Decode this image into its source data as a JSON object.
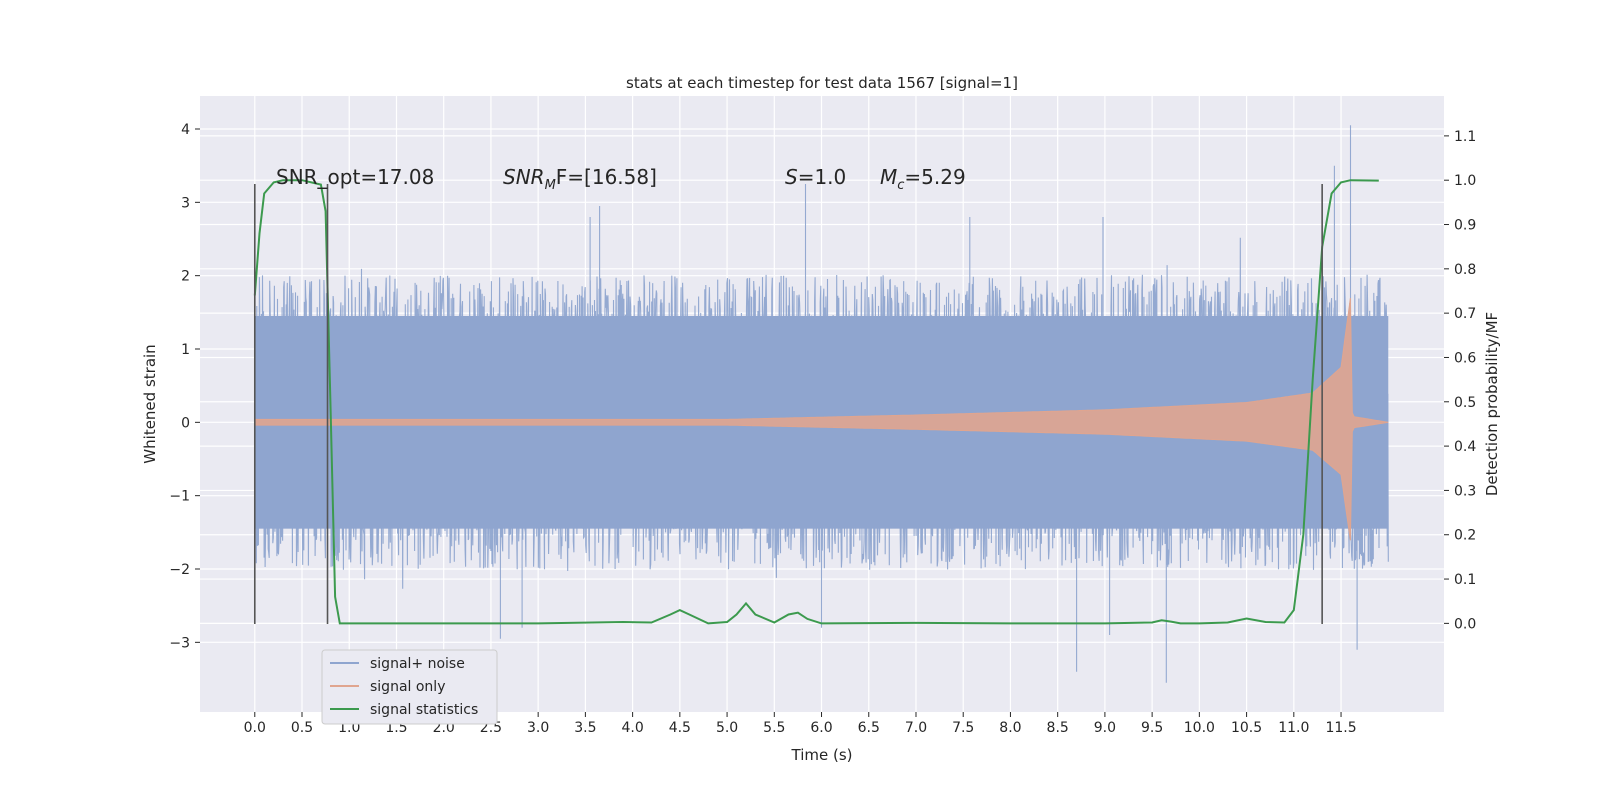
{
  "chart_data": {
    "type": "line",
    "title": "stats at each timestep for test data 1567 [signal=1]",
    "xlabel": "Time (s)",
    "ylabel": "Whitened strain",
    "ylabel_right": "Detection probability/MF",
    "xlim": [
      -0.58,
      12.59
    ],
    "ylim": [
      -3.95,
      4.45
    ],
    "ylim_right": [
      -0.2,
      1.19
    ],
    "x_ticks": [
      0.0,
      0.5,
      1.0,
      1.5,
      2.0,
      2.5,
      3.0,
      3.5,
      4.0,
      4.5,
      5.0,
      5.5,
      6.0,
      6.5,
      7.0,
      7.5,
      8.0,
      8.5,
      9.0,
      9.5,
      10.0,
      10.5,
      11.0,
      11.5
    ],
    "x_tick_labels": [
      "0.0",
      "0.5",
      "1.0",
      "1.5",
      "2.0",
      "2.5",
      "3.0",
      "3.5",
      "4.0",
      "4.5",
      "5.0",
      "5.5",
      "6.0",
      "6.5",
      "7.0",
      "7.5",
      "8.0",
      "8.5",
      "9.0",
      "9.5",
      "10.0",
      "10.5",
      "11.0",
      "11.5"
    ],
    "y_ticks": [
      -3,
      -2,
      -1,
      0,
      1,
      2,
      3,
      4
    ],
    "y_tick_labels": [
      "−3",
      "−2",
      "−1",
      "0",
      "1",
      "2",
      "3",
      "4"
    ],
    "y_ticks_right": [
      0.0,
      0.1,
      0.2,
      0.3,
      0.4,
      0.5,
      0.6,
      0.7,
      0.8,
      0.9,
      1.0,
      1.1
    ],
    "y_tick_labels_right": [
      "0.0",
      "0.1",
      "0.2",
      "0.3",
      "0.4",
      "0.5",
      "0.6",
      "0.7",
      "0.8",
      "0.9",
      "1.0",
      "1.1"
    ],
    "grid": true,
    "legend_position": "lower-left",
    "annotations": {
      "snr_opt": "SNR_opt=17.08",
      "snr_mf_label": "SNR",
      "snr_mf_sub": "M",
      "snr_mf_value": "F=[16.58]",
      "s_label": "S",
      "s_value": "=1.0",
      "mc_label": "M",
      "mc_sub": "c",
      "mc_value": "=5.29"
    },
    "series": [
      {
        "name": "signal+ noise",
        "color": "#8fa5cf",
        "kind": "noise",
        "x_start": 0.0,
        "x_end": 12.0,
        "typical_range": [
          -1.75,
          1.75
        ],
        "peak_samples": [
          {
            "x": 2.6,
            "y": -2.95
          },
          {
            "x": 2.83,
            "y": -2.8
          },
          {
            "x": 3.55,
            "y": 2.8
          },
          {
            "x": 3.65,
            "y": 2.95
          },
          {
            "x": 5.83,
            "y": 3.25
          },
          {
            "x": 6.0,
            "y": -2.8
          },
          {
            "x": 7.57,
            "y": 2.8
          },
          {
            "x": 8.7,
            "y": -3.4
          },
          {
            "x": 8.98,
            "y": 2.8
          },
          {
            "x": 9.05,
            "y": -2.9
          },
          {
            "x": 9.65,
            "y": -3.55
          },
          {
            "x": 11.6,
            "y": 4.05
          },
          {
            "x": 11.67,
            "y": -3.1
          },
          {
            "x": 11.43,
            "y": 3.5
          }
        ]
      },
      {
        "name": "signal only",
        "color": "#e0a58f",
        "kind": "chirp",
        "x_start": 0.0,
        "x_end": 12.0,
        "merger_time": 11.6,
        "amplitude_points": [
          {
            "x": 0.0,
            "a": 0.04
          },
          {
            "x": 5.0,
            "a": 0.04
          },
          {
            "x": 7.0,
            "a": 0.1
          },
          {
            "x": 9.0,
            "a": 0.17
          },
          {
            "x": 10.5,
            "a": 0.27
          },
          {
            "x": 11.2,
            "a": 0.4
          },
          {
            "x": 11.5,
            "a": 0.75
          },
          {
            "x": 11.6,
            "a": 1.7
          },
          {
            "x": 11.62,
            "a": 0.08
          },
          {
            "x": 12.0,
            "a": 0.0
          }
        ]
      },
      {
        "name": "signal statistics",
        "color": "#3c9a4e",
        "axis": "right",
        "x": [
          0.0,
          0.05,
          0.1,
          0.2,
          0.3,
          0.5,
          0.7,
          0.75,
          0.8,
          0.85,
          0.9,
          1.0,
          2.0,
          3.0,
          3.9,
          4.2,
          4.4,
          4.5,
          4.6,
          4.8,
          5.0,
          5.1,
          5.2,
          5.3,
          5.5,
          5.65,
          5.75,
          5.85,
          6.0,
          7.0,
          8.0,
          9.0,
          9.5,
          9.6,
          9.7,
          9.8,
          10.0,
          10.3,
          10.5,
          10.7,
          10.9,
          11.0,
          11.1,
          11.2,
          11.3,
          11.4,
          11.5,
          11.6,
          11.9
        ],
        "values": [
          0.74,
          0.88,
          0.97,
          0.995,
          1.0,
          1.0,
          0.99,
          0.93,
          0.5,
          0.06,
          0.0,
          0.0,
          0.0,
          0.0,
          0.003,
          0.002,
          0.02,
          0.03,
          0.02,
          0.0,
          0.003,
          0.02,
          0.045,
          0.02,
          0.002,
          0.02,
          0.024,
          0.01,
          0.0,
          0.001,
          0.0,
          0.0,
          0.002,
          0.007,
          0.004,
          0.0,
          0.0,
          0.002,
          0.011,
          0.003,
          0.002,
          0.03,
          0.2,
          0.55,
          0.85,
          0.97,
          0.995,
          1.0,
          0.999
        ]
      }
    ],
    "vlines": [
      0.0,
      0.77,
      11.3
    ]
  }
}
